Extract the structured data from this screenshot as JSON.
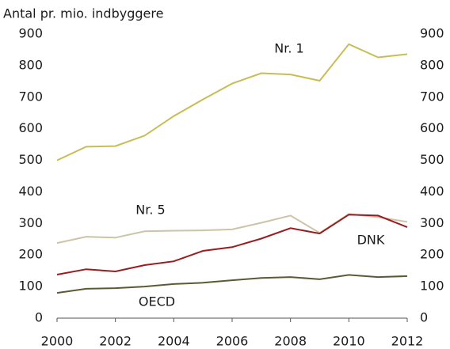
{
  "chart_data": {
    "type": "line",
    "y_axis_label": "Antal pr. mio. indbyggere",
    "x": [
      2000,
      2001,
      2002,
      2003,
      2004,
      2005,
      2006,
      2007,
      2008,
      2009,
      2010,
      2011,
      2012
    ],
    "xlim": [
      2000,
      2012
    ],
    "xticks": [
      2000,
      2002,
      2004,
      2006,
      2008,
      2010,
      2012
    ],
    "ylim": [
      0,
      900
    ],
    "yticks": [
      0,
      100,
      200,
      300,
      400,
      500,
      600,
      700,
      800,
      900
    ],
    "y2lim": [
      0,
      900
    ],
    "y2ticks": [
      0,
      100,
      200,
      300,
      400,
      500,
      600,
      700,
      800,
      900
    ],
    "series": [
      {
        "name": "Nr. 1",
        "color": "#c8bd55",
        "values": [
          500,
          543,
          545,
          578,
          640,
          693,
          743,
          776,
          772,
          752,
          868,
          826,
          836
        ]
      },
      {
        "name": "Nr. 5",
        "color": "#cdc3a6",
        "values": [
          238,
          258,
          255,
          275,
          277,
          278,
          281,
          302,
          325,
          270,
          330,
          320,
          305
        ]
      },
      {
        "name": "DNK",
        "color": "#9b1b1e",
        "values": [
          138,
          155,
          148,
          168,
          180,
          213,
          225,
          252,
          285,
          268,
          328,
          325,
          288
        ]
      },
      {
        "name": "OECD",
        "color": "#5e5935",
        "values": [
          80,
          93,
          95,
          100,
          108,
          112,
          120,
          127,
          130,
          123,
          137,
          130,
          133
        ]
      }
    ]
  }
}
